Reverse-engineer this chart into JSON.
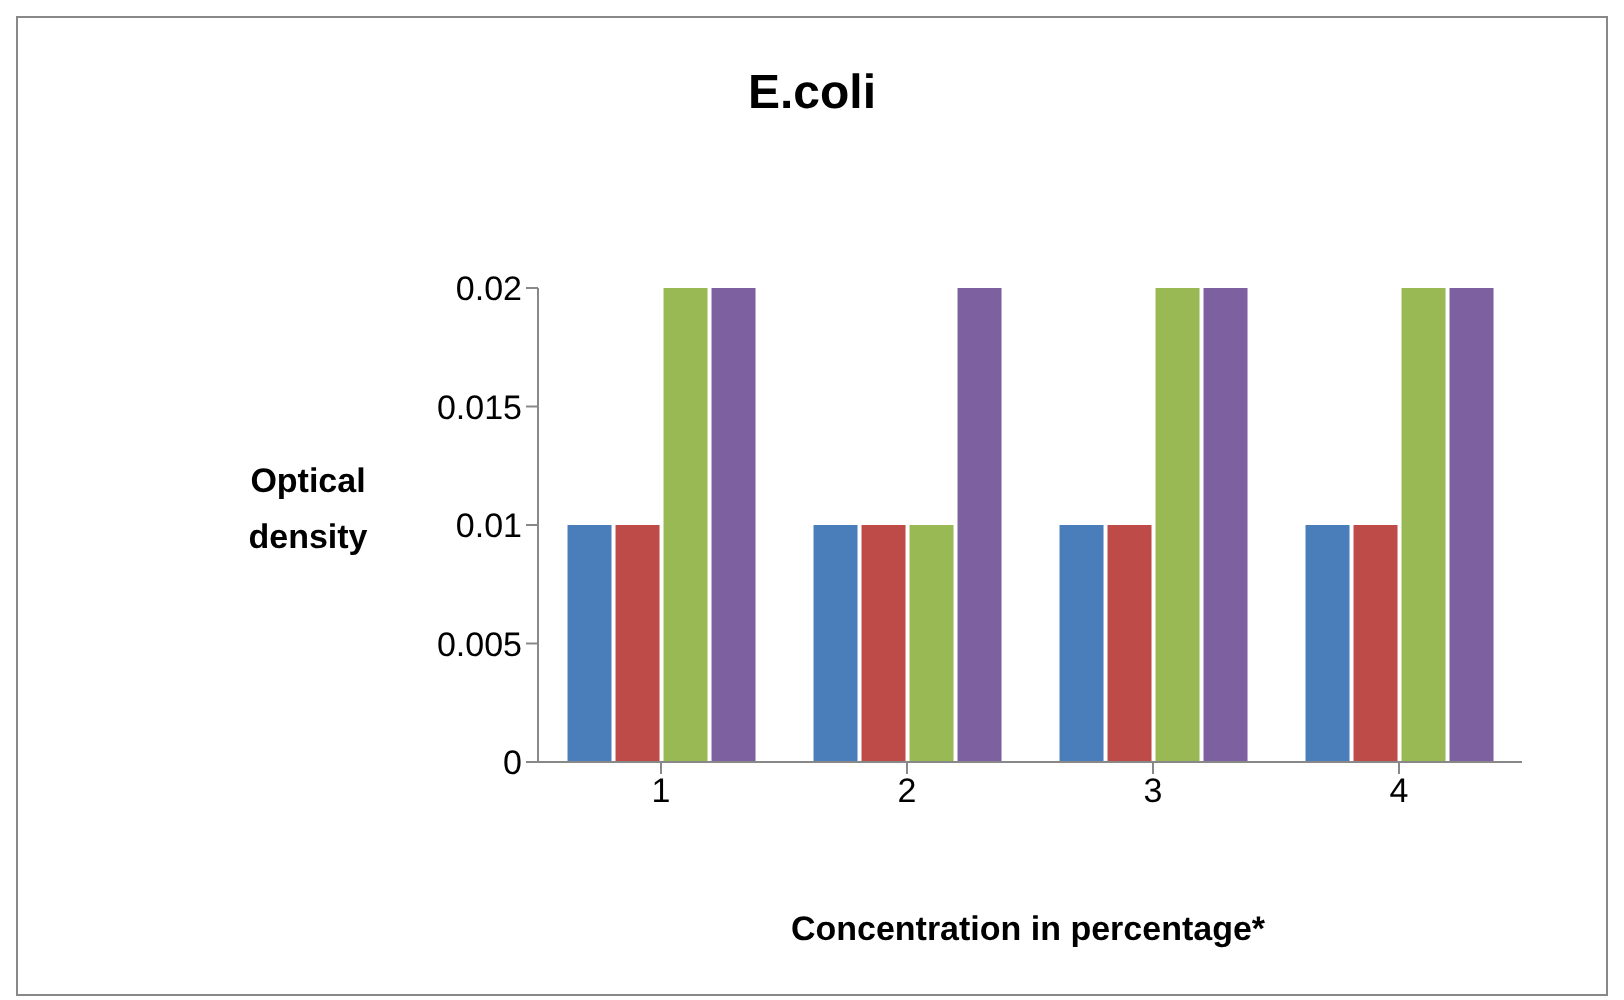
{
  "chart_data": {
    "type": "bar",
    "title": "E.coli",
    "xlabel": "Concentration in percentage*",
    "ylabel": "Optical density",
    "categories": [
      "1",
      "2",
      "3",
      "4"
    ],
    "series": [
      {
        "color": "#4a7ebb",
        "values": [
          0.01,
          0.01,
          0.01,
          0.01
        ]
      },
      {
        "color": "#be4b48",
        "values": [
          0.01,
          0.01,
          0.01,
          0.01
        ]
      },
      {
        "color": "#98b954",
        "values": [
          0.02,
          0.01,
          0.02,
          0.02
        ]
      },
      {
        "color": "#7d60a0",
        "values": [
          0.02,
          0.02,
          0.02,
          0.02
        ]
      }
    ],
    "ylim": [
      0,
      0.02
    ],
    "yticks": [
      0,
      0.005,
      0.01,
      0.015,
      0.02
    ],
    "grid": false
  }
}
